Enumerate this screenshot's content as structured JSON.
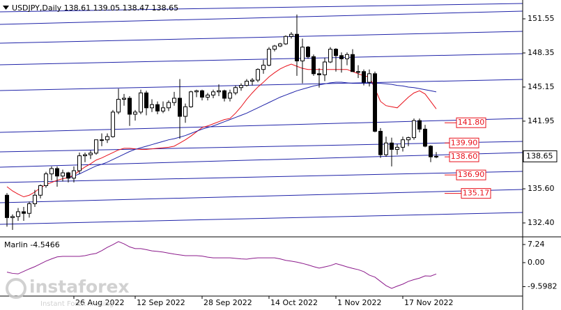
{
  "chart_data": {
    "type": "candlestick",
    "title": "USDJPY,Daily  138.61 139.05 138.47 138.65",
    "categories": [
      null,
      null,
      null,
      null,
      null,
      null,
      null,
      null,
      null,
      null,
      null,
      null,
      "26 Aug 2022",
      null,
      null,
      null,
      null,
      null,
      null,
      null,
      null,
      null,
      null,
      "12 Sep 2022",
      null,
      null,
      null,
      null,
      null,
      null,
      null,
      null,
      null,
      null,
      null,
      "28 Sep 2022",
      null,
      null,
      null,
      null,
      null,
      null,
      null,
      null,
      null,
      null,
      null,
      "14 Oct 2022",
      null,
      null,
      null,
      null,
      null,
      null,
      null,
      null,
      null,
      null,
      null,
      "1 Nov 2022",
      null,
      null,
      null,
      null,
      null,
      null,
      null,
      null,
      null,
      null,
      null,
      "17 Nov 2022",
      null,
      null,
      null,
      null,
      null,
      null
    ],
    "open": [
      135.0,
      132.9,
      133.0,
      133.45,
      133.3,
      134.2,
      135.0,
      135.9,
      137.0,
      137.5,
      136.8,
      137.1,
      136.6,
      137.3,
      138.7,
      138.8,
      138.95,
      140.2,
      140.2,
      140.5,
      142.8,
      144.0,
      144.1,
      142.6,
      142.8,
      144.6,
      143.2,
      143.5,
      142.9,
      143.2,
      143.7,
      144.1,
      142.4,
      143.3,
      144.7,
      144.8,
      144.2,
      144.4,
      144.7,
      144.8,
      144.1,
      144.6,
      145.1,
      145.3,
      145.7,
      145.8,
      146.8,
      147.2,
      148.7,
      149.0,
      149.2,
      149.9,
      150.1,
      147.6,
      148.9,
      148.0,
      146.4,
      146.3,
      147.5,
      148.7,
      148.1,
      147.8,
      148.2,
      146.6,
      146.6,
      145.6,
      146.4,
      141.0,
      138.8,
      139.9,
      139.3,
      139.5,
      140.2,
      140.4,
      142.0,
      141.2,
      139.6,
      138.61
    ],
    "high": [
      135.2,
      133.2,
      133.8,
      133.9,
      134.4,
      135.5,
      136.0,
      137.2,
      137.7,
      137.7,
      137.4,
      137.2,
      137.7,
      139.0,
      139.0,
      139.2,
      140.2,
      140.8,
      140.8,
      143.0,
      145.0,
      144.5,
      144.3,
      143.0,
      144.9,
      144.8,
      144.0,
      143.8,
      143.8,
      143.9,
      144.7,
      145.9,
      143.6,
      144.8,
      144.9,
      144.9,
      144.6,
      144.9,
      145.4,
      144.9,
      144.9,
      145.3,
      145.5,
      145.9,
      146.0,
      146.9,
      147.7,
      148.9,
      149.1,
      149.3,
      150.0,
      150.3,
      151.95,
      149.7,
      149.0,
      148.2,
      146.9,
      147.9,
      148.9,
      148.8,
      148.4,
      148.4,
      148.7,
      147.2,
      146.8,
      146.8,
      146.6,
      141.3,
      140.5,
      140.4,
      139.8,
      140.5,
      140.5,
      142.2,
      142.2,
      141.6,
      139.7,
      139.05
    ],
    "low": [
      132.05,
      131.75,
      132.6,
      132.6,
      132.9,
      133.9,
      134.7,
      135.7,
      136.4,
      135.8,
      136.3,
      136.2,
      136.2,
      137.0,
      138.1,
      138.4,
      138.8,
      139.6,
      139.9,
      140.4,
      142.6,
      143.4,
      141.5,
      142.0,
      142.6,
      142.5,
      142.8,
      142.6,
      142.7,
      142.9,
      143.4,
      140.3,
      141.8,
      143.2,
      144.2,
      143.9,
      143.9,
      144.1,
      144.3,
      143.8,
      143.8,
      144.4,
      144.8,
      145.2,
      145.3,
      145.6,
      146.4,
      147.1,
      148.5,
      148.9,
      149.1,
      149.7,
      146.2,
      145.5,
      147.8,
      146.2,
      145.1,
      145.7,
      147.4,
      146.6,
      146.5,
      147.2,
      146.6,
      146.0,
      145.3,
      145.2,
      140.9,
      138.5,
      138.6,
      137.7,
      138.8,
      139.1,
      139.6,
      140.2,
      140.9,
      139.5,
      138.1,
      138.47
    ],
    "close": [
      132.9,
      133.0,
      133.45,
      133.3,
      134.2,
      135.0,
      135.9,
      137.0,
      137.5,
      136.8,
      137.1,
      136.6,
      137.3,
      138.7,
      138.8,
      138.95,
      140.2,
      140.2,
      140.5,
      142.8,
      144.0,
      144.1,
      142.6,
      142.8,
      144.6,
      143.2,
      143.5,
      142.9,
      143.2,
      143.7,
      144.1,
      142.4,
      143.3,
      144.7,
      144.8,
      144.2,
      144.4,
      144.7,
      144.8,
      144.1,
      144.6,
      145.1,
      145.3,
      145.7,
      145.8,
      146.8,
      147.2,
      148.7,
      149.0,
      149.2,
      149.9,
      150.1,
      147.6,
      148.9,
      148.0,
      146.4,
      146.3,
      147.5,
      148.7,
      148.1,
      147.8,
      148.2,
      146.6,
      146.6,
      145.6,
      146.4,
      141.0,
      138.8,
      139.9,
      139.3,
      139.5,
      140.2,
      140.4,
      142.0,
      141.2,
      139.6,
      138.6,
      138.65
    ],
    "up_color": "#ffffff",
    "down_color": "#000000",
    "overlays": [
      {
        "color": "#e8101a",
        "values": [
          135.8,
          135.4,
          135.1,
          134.85,
          135.0,
          135.3,
          135.7,
          136.0,
          136.2,
          136.4,
          136.55,
          136.65,
          136.9,
          137.3,
          137.65,
          137.95,
          138.3,
          138.5,
          138.75,
          139.0,
          139.25,
          139.4,
          139.4,
          139.35,
          139.3,
          139.3,
          139.35,
          139.4,
          139.45,
          139.5,
          139.6,
          139.9,
          140.2,
          140.55,
          140.95,
          141.35,
          141.5,
          141.7,
          141.9,
          142.1,
          142.2,
          142.7,
          143.3,
          144.0,
          144.6,
          145.15,
          145.6,
          146.1,
          146.5,
          146.85,
          147.1,
          147.3,
          147.1,
          146.9,
          146.8,
          146.8,
          146.8,
          146.8,
          146.8,
          146.8,
          146.8,
          146.8,
          146.6,
          146.4,
          146.2,
          146.1,
          145.0,
          143.8,
          143.4,
          143.3,
          143.2,
          143.7,
          144.2,
          144.6,
          144.8,
          144.5,
          143.8,
          143.1
        ]
      },
      {
        "color": "#1e22a8",
        "values": [
          null,
          null,
          null,
          null,
          null,
          null,
          null,
          null,
          null,
          null,
          null,
          136.6,
          136.8,
          137.0,
          137.25,
          137.5,
          137.75,
          137.9,
          138.1,
          138.35,
          138.6,
          138.85,
          139.1,
          139.3,
          139.45,
          139.6,
          139.75,
          139.9,
          140.05,
          140.2,
          140.3,
          140.45,
          140.6,
          140.8,
          141.0,
          141.2,
          141.35,
          141.5,
          141.7,
          141.9,
          142.1,
          142.3,
          142.5,
          142.7,
          142.95,
          143.2,
          143.45,
          143.7,
          143.95,
          144.2,
          144.4,
          144.6,
          144.8,
          144.95,
          145.1,
          145.25,
          145.35,
          145.45,
          145.55,
          145.6,
          145.6,
          145.55,
          145.5,
          145.5,
          145.5,
          145.5,
          145.5,
          145.5,
          145.45,
          145.4,
          145.3,
          145.25,
          145.15,
          145.1,
          145.0,
          144.9,
          144.8,
          144.7
        ]
      }
    ],
    "levels": [
      {
        "value": 141.8,
        "label": "141.80"
      },
      {
        "value": 139.9,
        "label": "139.90"
      },
      {
        "value": 138.6,
        "label": "138.60"
      },
      {
        "value": 136.9,
        "label": "136.90"
      },
      135.17
    ],
    "level_color": "#e8101a",
    "last_price": 138.65,
    "ylim": [
      131.42,
      152.99
    ],
    "yticks": [
      151.55,
      148.35,
      145.15,
      141.95,
      {
        "value": 135.6,
        "label": "135.60"
      },
      {
        "value": 132.4,
        "label": "132.40"
      }
    ],
    "grid": false,
    "indicator": {
      "label": "Marlin -4.5466",
      "color": "#8b1a8b",
      "values": [
        -3.8,
        -4.3,
        -4.5,
        -3.5,
        -2.5,
        -1.6,
        -0.5,
        0.6,
        1.5,
        2.3,
        2.5,
        2.5,
        2.5,
        2.5,
        2.8,
        3.3,
        3.7,
        4.8,
        6.1,
        7.2,
        8.4,
        7.5,
        6.3,
        5.6,
        5.6,
        5.2,
        4.7,
        4.5,
        4.2,
        3.8,
        3.4,
        3.1,
        2.8,
        2.8,
        2.8,
        2.6,
        2.2,
        1.9,
        1.9,
        1.9,
        1.9,
        1.7,
        1.5,
        1.4,
        1.7,
        1.9,
        1.9,
        1.9,
        1.9,
        1.5,
        0.9,
        0.6,
        0.2,
        -0.3,
        -0.9,
        -1.6,
        -2.2,
        -1.7,
        -1.2,
        -0.4,
        -1.0,
        -1.7,
        -2.3,
        -2.8,
        -3.6,
        -5.0,
        -5.8,
        -7.5,
        -9.2,
        -10.3,
        -9.4,
        -8.6,
        -7.5,
        -6.8,
        -6.2,
        -5.3,
        -5.4,
        -4.5466
      ],
      "ylim": [
        -13.37,
        9.75
      ],
      "yticks": [
        7.24,
        {
          "value": 0,
          "label": "0.00"
        },
        -9.5982
      ]
    },
    "watermark": {
      "brand": "instaforex",
      "tagline": "Instant Forex Trading"
    }
  }
}
